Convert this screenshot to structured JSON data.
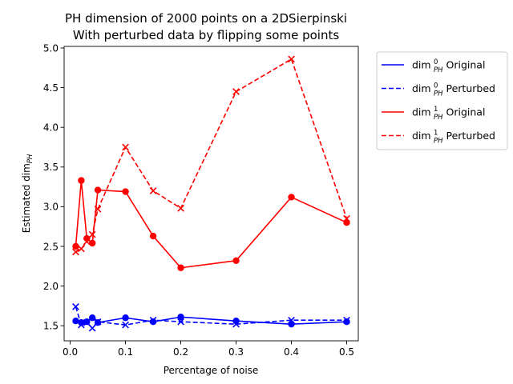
{
  "chart_data": {
    "type": "line",
    "title": [
      "PH dimension of 2000 points on a 2DSierpinski",
      "With perturbed data by flipping some points"
    ],
    "xlabel": "Percentage of noise",
    "ylabel": "Estimated dim",
    "ylabel_sub": "PH",
    "xlim": [
      -0.011,
      0.521
    ],
    "ylim": [
      1.31,
      5.02
    ],
    "xticks": [
      0.0,
      0.1,
      0.2,
      0.3,
      0.4,
      0.5
    ],
    "xtick_labels": [
      "0.0",
      "0.1",
      "0.2",
      "0.3",
      "0.4",
      "0.5"
    ],
    "yticks": [
      1.5,
      2.0,
      2.5,
      3.0,
      3.5,
      4.0,
      4.5,
      5.0
    ],
    "ytick_labels": [
      "1.5",
      "2.0",
      "2.5",
      "3.0",
      "3.5",
      "4.0",
      "4.5",
      "5.0"
    ],
    "legend_position": "outside right, top",
    "series": [
      {
        "id": "dim0-original",
        "legend": {
          "base": "dim",
          "sup": "0",
          "sub": "PH",
          "suffix": " Original"
        },
        "color": "#0000ff",
        "dash": "solid",
        "marker": "circle",
        "x": [
          0.01,
          0.02,
          0.03,
          0.04,
          0.05,
          0.1,
          0.15,
          0.2,
          0.3,
          0.4,
          0.5
        ],
        "y": [
          1.56,
          1.54,
          1.55,
          1.6,
          1.54,
          1.6,
          1.55,
          1.61,
          1.56,
          1.52,
          1.55
        ]
      },
      {
        "id": "dim0-perturbed",
        "legend": {
          "base": "dim",
          "sup": "0",
          "sub": "PH",
          "suffix": " Perturbed"
        },
        "color": "#0000ff",
        "dash": "dashed",
        "marker": "x",
        "x": [
          0.01,
          0.02,
          0.03,
          0.04,
          0.05,
          0.1,
          0.15,
          0.2,
          0.3,
          0.4,
          0.5
        ],
        "y": [
          1.74,
          1.51,
          1.54,
          1.47,
          1.55,
          1.51,
          1.57,
          1.55,
          1.52,
          1.57,
          1.57
        ]
      },
      {
        "id": "dim1-original",
        "legend": {
          "base": "dim",
          "sup": "1",
          "sub": "PH",
          "suffix": " Original"
        },
        "color": "#ff0000",
        "dash": "solid",
        "marker": "circle",
        "x": [
          0.01,
          0.02,
          0.03,
          0.04,
          0.05,
          0.1,
          0.15,
          0.2,
          0.3,
          0.4,
          0.5
        ],
        "y": [
          2.5,
          3.33,
          2.6,
          2.54,
          3.21,
          3.19,
          2.63,
          2.23,
          2.32,
          3.12,
          2.8
        ]
      },
      {
        "id": "dim1-perturbed",
        "legend": {
          "base": "dim",
          "sup": "1",
          "sub": "PH",
          "suffix": " Perturbed"
        },
        "color": "#ff0000",
        "dash": "dashed",
        "marker": "x",
        "x": [
          0.01,
          0.02,
          0.03,
          0.04,
          0.05,
          0.1,
          0.15,
          0.2,
          0.3,
          0.4,
          0.5
        ],
        "y": [
          2.43,
          2.47,
          2.56,
          2.65,
          2.97,
          3.75,
          3.2,
          2.98,
          4.45,
          4.86,
          2.85
        ]
      }
    ]
  }
}
